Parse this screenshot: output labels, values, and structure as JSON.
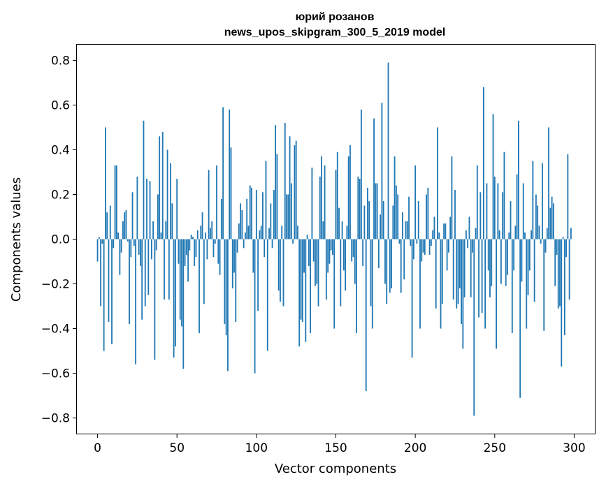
{
  "chart_data": {
    "type": "bar",
    "title_line1": "юрий розанов",
    "title_line2": "news_upos_skipgram_300_5_2019 model",
    "xlabel": "Vector components",
    "ylabel": "Components values",
    "xlim": [
      -13,
      313
    ],
    "ylim": [
      -0.87,
      0.87
    ],
    "xticks": [
      0,
      50,
      100,
      150,
      200,
      250,
      300
    ],
    "yticks": [
      -0.8,
      -0.6,
      -0.4,
      -0.2,
      0.0,
      0.2,
      0.4,
      0.6,
      0.8
    ],
    "xtick_labels": [
      "0",
      "50",
      "100",
      "150",
      "200",
      "250",
      "300"
    ],
    "ytick_labels": [
      "−0.8",
      "−0.6",
      "−0.4",
      "−0.2",
      "0.0",
      "0.2",
      "0.4",
      "0.6",
      "0.8"
    ],
    "bar_color": "#1f77b4",
    "values": [
      -0.1,
      0.01,
      -0.3,
      -0.02,
      -0.5,
      0.5,
      0.12,
      -0.37,
      0.15,
      -0.47,
      -0.04,
      0.33,
      0.33,
      0.03,
      -0.16,
      -0.06,
      0.08,
      0.12,
      0.13,
      -0.01,
      -0.38,
      -0.08,
      0.21,
      -0.03,
      -0.56,
      0.28,
      -0.07,
      -0.12,
      -0.36,
      0.53,
      -0.3,
      0.27,
      -0.25,
      0.26,
      -0.09,
      0.08,
      -0.54,
      -0.05,
      0.2,
      0.46,
      0.03,
      0.48,
      -0.27,
      0.08,
      0.4,
      -0.27,
      0.34,
      0.16,
      -0.53,
      -0.48,
      0.27,
      -0.11,
      -0.36,
      -0.39,
      -0.58,
      -0.12,
      -0.07,
      -0.19,
      -0.05,
      0.02,
      0.01,
      -0.12,
      -0.08,
      0.04,
      -0.42,
      0.06,
      0.12,
      -0.29,
      0.03,
      -0.09,
      0.31,
      0.05,
      0.08,
      -0.08,
      -0.02,
      0.33,
      -0.11,
      -0.16,
      0.18,
      0.59,
      -0.38,
      -0.43,
      -0.59,
      0.58,
      0.41,
      -0.22,
      -0.15,
      -0.37,
      -0.06,
      0.07,
      0.16,
      0.13,
      -0.04,
      0.03,
      0.18,
      0.06,
      0.24,
      0.23,
      -0.15,
      -0.6,
      0.22,
      -0.32,
      0.04,
      0.06,
      0.21,
      -0.08,
      0.35,
      -0.5,
      0.05,
      0.16,
      -0.04,
      0.22,
      0.51,
      0.38,
      -0.23,
      -0.28,
      0.06,
      -0.3,
      0.52,
      0.2,
      0.2,
      0.46,
      0.25,
      -0.02,
      0.42,
      0.44,
      0.06,
      -0.48,
      -0.36,
      -0.37,
      -0.15,
      -0.46,
      0.02,
      -0.12,
      -0.42,
      0.32,
      -0.1,
      -0.21,
      -0.2,
      -0.3,
      0.28,
      0.37,
      0.08,
      0.33,
      -0.27,
      -0.15,
      -0.11,
      -0.05,
      -0.07,
      -0.4,
      0.31,
      0.39,
      0.14,
      -0.3,
      0.08,
      -0.14,
      -0.23,
      0.06,
      0.37,
      0.42,
      -0.1,
      -0.08,
      -0.2,
      -0.42,
      0.28,
      0.27,
      0.58,
      -0.12,
      0.15,
      -0.68,
      0.23,
      0.17,
      -0.3,
      -0.4,
      0.54,
      0.25,
      0.25,
      -0.13,
      0.11,
      0.61,
      0.17,
      -0.2,
      -0.29,
      0.79,
      -0.24,
      -0.22,
      0.15,
      0.37,
      0.24,
      0.2,
      -0.02,
      -0.24,
      0.12,
      -0.18,
      0.08,
      0.08,
      0.19,
      -0.03,
      -0.53,
      -0.09,
      0.33,
      -0.02,
      0.17,
      -0.4,
      -0.1,
      -0.06,
      -0.07,
      0.2,
      0.23,
      -0.07,
      -0.03,
      0.04,
      0.1,
      -0.31,
      0.5,
      0.03,
      -0.4,
      -0.29,
      0.07,
      0.07,
      -0.14,
      -0.06,
      0.1,
      0.37,
      -0.27,
      0.22,
      -0.31,
      -0.29,
      -0.22,
      -0.38,
      -0.49,
      -0.26,
      0.04,
      -0.04,
      0.1,
      -0.26,
      -0.06,
      -0.79,
      0.05,
      0.33,
      -0.35,
      0.21,
      -0.33,
      0.68,
      -0.4,
      0.25,
      -0.14,
      -0.26,
      -0.21,
      0.56,
      0.28,
      -0.49,
      0.25,
      0.04,
      -0.2,
      0.21,
      0.39,
      -0.21,
      -0.16,
      0.03,
      0.17,
      -0.42,
      -0.14,
      0.06,
      0.29,
      0.53,
      -0.71,
      -0.19,
      0.25,
      0.03,
      -0.4,
      -0.25,
      -0.14,
      0.04,
      0.35,
      -0.28,
      0.2,
      0.15,
      0.06,
      -0.02,
      0.34,
      -0.41,
      -0.06,
      0.05,
      0.5,
      0.14,
      0.19,
      0.16,
      -0.21,
      -0.07,
      -0.31,
      -0.3,
      -0.57,
      0.01,
      -0.43,
      -0.08,
      0.38,
      -0.27,
      0.05
    ]
  }
}
